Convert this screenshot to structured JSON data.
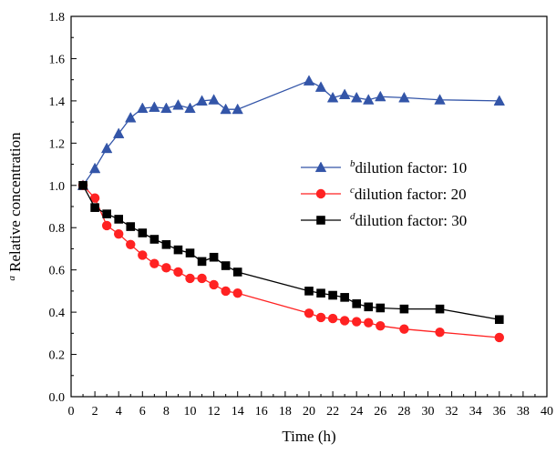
{
  "chart_data": {
    "type": "line",
    "title": "",
    "xlabel": "Time (h)",
    "ylabel_superscript": "a",
    "ylabel": "Relative concentration",
    "xlim": [
      0,
      40
    ],
    "ylim": [
      0.0,
      1.8
    ],
    "xticks": [
      0,
      2,
      4,
      6,
      8,
      10,
      12,
      14,
      16,
      18,
      20,
      22,
      24,
      26,
      28,
      30,
      32,
      34,
      36,
      38,
      40
    ],
    "yticks": [
      0.0,
      0.2,
      0.4,
      0.6,
      0.8,
      1.0,
      1.2,
      1.4,
      1.6,
      1.8
    ],
    "xtick_labels": [
      "0",
      "2",
      "4",
      "6",
      "8",
      "10",
      "12",
      "14",
      "16",
      "18",
      "20",
      "22",
      "24",
      "26",
      "28",
      "30",
      "32",
      "34",
      "36",
      "38",
      "40"
    ],
    "ytick_labels": [
      "0.0",
      "0.2",
      "0.4",
      "0.6",
      "0.8",
      "1.0",
      "1.2",
      "1.4",
      "1.6",
      "1.8"
    ],
    "grid": false,
    "legend_position": "right, middle",
    "series": [
      {
        "name": "dilution factor: 10",
        "superscript": "b",
        "color": "#3355a8",
        "marker": "triangle",
        "x": [
          1,
          2,
          3,
          4,
          5,
          6,
          7,
          8,
          9,
          10,
          11,
          12,
          13,
          14,
          20,
          21,
          22,
          23,
          24,
          25,
          26,
          28,
          31,
          36
        ],
        "y": [
          1.0,
          1.08,
          1.175,
          1.245,
          1.32,
          1.365,
          1.37,
          1.365,
          1.38,
          1.365,
          1.4,
          1.405,
          1.36,
          1.36,
          1.495,
          1.465,
          1.415,
          1.43,
          1.415,
          1.405,
          1.42,
          1.415,
          1.405,
          1.4
        ]
      },
      {
        "name": "dilution factor: 20",
        "superscript": "c",
        "color": "#ff2222",
        "marker": "circle",
        "x": [
          1,
          2,
          3,
          4,
          5,
          6,
          7,
          8,
          9,
          10,
          11,
          12,
          13,
          14,
          20,
          21,
          22,
          23,
          24,
          25,
          26,
          28,
          31,
          36
        ],
        "y": [
          1.0,
          0.94,
          0.81,
          0.77,
          0.72,
          0.67,
          0.63,
          0.61,
          0.59,
          0.56,
          0.56,
          0.53,
          0.5,
          0.49,
          0.395,
          0.375,
          0.37,
          0.36,
          0.355,
          0.35,
          0.335,
          0.32,
          0.305,
          0.28
        ]
      },
      {
        "name": "dilution factor: 30",
        "superscript": "d",
        "color": "#000000",
        "marker": "square",
        "x": [
          1,
          2,
          3,
          4,
          5,
          6,
          7,
          8,
          9,
          10,
          11,
          12,
          13,
          14,
          20,
          21,
          22,
          23,
          24,
          25,
          26,
          28,
          31,
          36
        ],
        "y": [
          1.0,
          0.895,
          0.865,
          0.84,
          0.805,
          0.775,
          0.745,
          0.72,
          0.695,
          0.68,
          0.64,
          0.66,
          0.62,
          0.59,
          0.5,
          0.49,
          0.48,
          0.47,
          0.44,
          0.425,
          0.42,
          0.415,
          0.415,
          0.365
        ]
      }
    ]
  }
}
